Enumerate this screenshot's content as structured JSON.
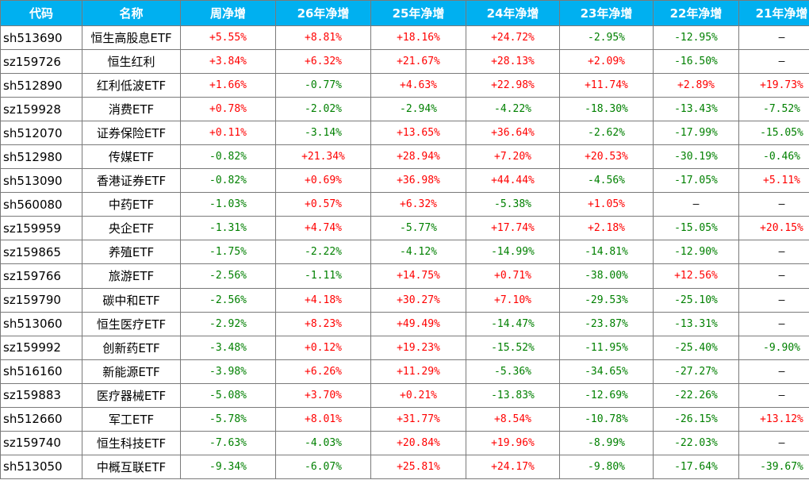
{
  "colors": {
    "header_bg": "#00b0f0",
    "header_text": "#ffffff",
    "positive": "#ff0000",
    "negative": "#008000",
    "grid": "#7a7a7a"
  },
  "headers": [
    "代码",
    "名称",
    "周净增",
    "26年净增",
    "25年净增",
    "24年净增",
    "23年净增",
    "22年净增",
    "21年净增"
  ],
  "rows": [
    [
      "sh513690",
      "恒生高股息ETF",
      "+5.55%",
      "+8.81%",
      "+18.16%",
      "+24.72%",
      "-2.95%",
      "-12.95%",
      "—"
    ],
    [
      "sz159726",
      "恒生红利",
      "+3.84%",
      "+6.32%",
      "+21.67%",
      "+28.13%",
      "+2.09%",
      "-16.50%",
      "—"
    ],
    [
      "sh512890",
      "红利低波ETF",
      "+1.66%",
      "-0.77%",
      "+4.63%",
      "+22.98%",
      "+11.74%",
      "+2.89%",
      "+19.73%"
    ],
    [
      "sz159928",
      "消费ETF",
      "+0.78%",
      "-2.02%",
      "-2.94%",
      "-4.22%",
      "-18.30%",
      "-13.43%",
      "-7.52%"
    ],
    [
      "sh512070",
      "证券保险ETF",
      "+0.11%",
      "-3.14%",
      "+13.65%",
      "+36.64%",
      "-2.62%",
      "-17.99%",
      "-15.05%"
    ],
    [
      "sh512980",
      "传媒ETF",
      "-0.82%",
      "+21.34%",
      "+28.94%",
      "+7.20%",
      "+20.53%",
      "-30.19%",
      "-0.46%"
    ],
    [
      "sh513090",
      "香港证券ETF",
      "-0.82%",
      "+0.69%",
      "+36.98%",
      "+44.44%",
      "-4.56%",
      "-17.05%",
      "+5.11%"
    ],
    [
      "sh560080",
      "中药ETF",
      "-1.03%",
      "+0.57%",
      "+6.32%",
      "-5.38%",
      "+1.05%",
      "—",
      "—"
    ],
    [
      "sz159959",
      "央企ETF",
      "-1.31%",
      "+4.74%",
      "-5.77%",
      "+17.74%",
      "+2.18%",
      "-15.05%",
      "+20.15%"
    ],
    [
      "sz159865",
      "养殖ETF",
      "-1.75%",
      "-2.22%",
      "-4.12%",
      "-14.99%",
      "-14.81%",
      "-12.90%",
      "—"
    ],
    [
      "sz159766",
      "旅游ETF",
      "-2.56%",
      "-1.11%",
      "+14.75%",
      "+0.71%",
      "-38.00%",
      "+12.56%",
      "—"
    ],
    [
      "sz159790",
      "碳中和ETF",
      "-2.56%",
      "+4.18%",
      "+30.27%",
      "+7.10%",
      "-29.53%",
      "-25.10%",
      "—"
    ],
    [
      "sh513060",
      "恒生医疗ETF",
      "-2.92%",
      "+8.23%",
      "+49.49%",
      "-14.47%",
      "-23.87%",
      "-13.31%",
      "—"
    ],
    [
      "sz159992",
      "创新药ETF",
      "-3.48%",
      "+0.12%",
      "+19.23%",
      "-15.52%",
      "-11.95%",
      "-25.40%",
      "-9.90%"
    ],
    [
      "sh516160",
      "新能源ETF",
      "-3.98%",
      "+6.26%",
      "+11.29%",
      "-5.36%",
      "-34.65%",
      "-27.27%",
      "—"
    ],
    [
      "sz159883",
      "医疗器械ETF",
      "-5.08%",
      "+3.70%",
      "+0.21%",
      "-13.83%",
      "-12.69%",
      "-22.26%",
      "—"
    ],
    [
      "sh512660",
      "军工ETF",
      "-5.78%",
      "+8.01%",
      "+31.77%",
      "+8.54%",
      "-10.78%",
      "-26.15%",
      "+13.12%"
    ],
    [
      "sz159740",
      "恒生科技ETF",
      "-7.63%",
      "-4.03%",
      "+20.84%",
      "+19.96%",
      "-8.99%",
      "-22.03%",
      "—"
    ],
    [
      "sh513050",
      "中概互联ETF",
      "-9.34%",
      "-6.07%",
      "+25.81%",
      "+24.17%",
      "-9.80%",
      "-17.64%",
      "-39.67%"
    ]
  ]
}
